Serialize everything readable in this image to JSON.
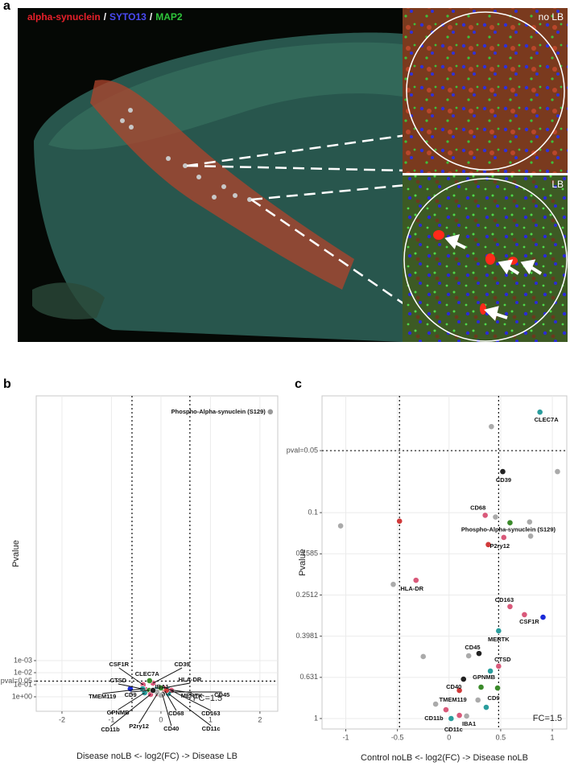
{
  "figure_a": {
    "panel_label": "a",
    "legend": [
      {
        "text": "alpha-synuclein",
        "color": "#e8202a"
      },
      {
        "text": "/",
        "color": "#ffffff"
      },
      {
        "text": "SYTO13",
        "color": "#4a4af5"
      },
      {
        "text": "/",
        "color": "#ffffff"
      },
      {
        "text": "MAP2",
        "color": "#2ec43a"
      }
    ],
    "insets": [
      "no LB",
      "LB"
    ]
  },
  "chart_data": [
    {
      "type": "scatter",
      "panel_label": "b",
      "x_label": "Disease noLB <- log2(FC) -> Disease LB",
      "y_label": "Pvalue",
      "annotation": "FC=1.5",
      "xlim": [
        -2.52,
        2.36
      ],
      "xticks": [
        -2,
        -1,
        0,
        1,
        2
      ],
      "ylim": [
        15.8,
        1.2e-25
      ],
      "log_y": true,
      "yticks": [
        {
          "value": 1,
          "label": "1e+00"
        },
        {
          "value": 0.1,
          "label": "1e-01"
        },
        {
          "value": 0.05,
          "label": "pval=0.05"
        },
        {
          "value": 0.01,
          "label": "1e-02"
        },
        {
          "value": 0.001,
          "label": "1e-03"
        }
      ],
      "vlines": [
        -0.585,
        0.585
      ],
      "hline": 0.05,
      "grid": true,
      "points": [
        {
          "label": "Phospho-Alpha-synuclein (S129)",
          "color": "#9a9a9a",
          "x": 2.21,
          "y": 2.5e-24
        },
        {
          "label": "CSF1R",
          "color": "#d9597a",
          "x": -0.36,
          "y": 0.1
        },
        {
          "label": "CD39",
          "color": "#d9597a",
          "x": -0.16,
          "y": 0.0736
        },
        {
          "label": "CLEC7A",
          "color": "#3a8a2a",
          "x": -0.23,
          "y": 0.0464
        },
        {
          "label": "CTSD",
          "color": "#d9597a",
          "x": -0.31,
          "y": 0.251
        },
        {
          "label": "HLA-DR",
          "color": "#d9597a",
          "x": 0.05,
          "y": 0.185
        },
        {
          "label": "IBA1",
          "color": "#2a9d9d",
          "x": -0.11,
          "y": 0.251
        },
        {
          "label": "MERTK",
          "color": "#2a9d9d",
          "x": 0.15,
          "y": 0.251
        },
        {
          "label": "CD45",
          "color": "#222222",
          "x": 0.16,
          "y": 0.398
        },
        {
          "label": "TMEM119",
          "color": "#2a9d9d",
          "x": -0.37,
          "y": 0.215
        },
        {
          "label": "CD9",
          "color": "#3a8a2a",
          "x": -0.24,
          "y": 0.293
        },
        {
          "label": "GPNMB",
          "color": "#2a9d9d",
          "x": -0.33,
          "y": 0.464
        },
        {
          "label": "CD68",
          "color": "#d03a3a",
          "x": 0.08,
          "y": 0.341
        },
        {
          "label": "CD163",
          "color": "#d9597a",
          "x": 0.21,
          "y": 0.293
        },
        {
          "label": "CD11b",
          "color": "#d9597a",
          "x": -0.21,
          "y": 0.631
        },
        {
          "label": "P2ry12",
          "color": "#d9597a",
          "x": -0.07,
          "y": 0.541
        },
        {
          "label": "CD40",
          "color": "#222222",
          "x": 0.03,
          "y": 0.631
        },
        {
          "label": "CD11c",
          "color": "#2a9d9d",
          "x": 0.15,
          "y": 0.541
        },
        {
          "color": "#1a2ad8",
          "x": -0.62,
          "y": 0.215
        },
        {
          "color": "#d03a3a",
          "x": 0.11,
          "y": 0.293
        },
        {
          "color": "#aaaaaa",
          "x": 0,
          "y": 0.736
        },
        {
          "color": "#aaaaaa",
          "x": -0.08,
          "y": 0.398
        },
        {
          "color": "#222222",
          "x": -0.16,
          "y": 0.293
        },
        {
          "color": "#3a8a2a",
          "x": 0,
          "y": 0.185
        }
      ]
    },
    {
      "type": "scatter",
      "panel_label": "c",
      "x_label": "Control noLB <- log2(FC) -> Disease noLB",
      "y_label": "Pvalue",
      "annotation": "FC=1.5",
      "xlim": [
        -1.23,
        1.14
      ],
      "xticks": [
        -1,
        -0.5,
        0,
        0.5,
        1
      ],
      "ylim": [
        1.124,
        0.0271
      ],
      "log_y": true,
      "yticks": [
        1,
        0.631,
        0.3981,
        0.2512,
        0.1585,
        0.1,
        {
          "value": 0.05,
          "label": "pval=0.05"
        }
      ],
      "vlines": [
        -0.48,
        0.48
      ],
      "hline": 0.05,
      "grid": true,
      "points": [
        {
          "label": "CLEC7A",
          "color": "#2a9d9d",
          "x": 0.88,
          "y": 0.0325
        },
        {
          "label": "CD39",
          "color": "#222222",
          "x": 0.52,
          "y": 0.0632
        },
        {
          "label": "CD68",
          "color": "#d9597a",
          "x": 0.35,
          "y": 0.103
        },
        {
          "label": "Phospho-Alpha-synuclein (S129)",
          "color": "#3a8a2a",
          "x": 0.59,
          "y": 0.112
        },
        {
          "label": "P2ry12",
          "color": "#d9597a",
          "x": 0.53,
          "y": 0.132
        },
        {
          "label": "CD163",
          "color": "#d9597a",
          "x": 0.59,
          "y": 0.286
        },
        {
          "label": "CSF1R",
          "color": "#d9597a",
          "x": 0.73,
          "y": 0.313
        },
        {
          "label": "HLA-DR",
          "color": "#d9597a",
          "x": -0.32,
          "y": 0.213
        },
        {
          "label": "MERTK",
          "color": "#2a9d9d",
          "x": 0.48,
          "y": 0.375
        },
        {
          "label": "CD45",
          "color": "#222222",
          "x": 0.29,
          "y": 0.483
        },
        {
          "label": "CTSD",
          "color": "#d9597a",
          "x": 0.48,
          "y": 0.557
        },
        {
          "label": "GPNMB",
          "color": "#2a9d9d",
          "x": 0.4,
          "y": 0.588
        },
        {
          "label": "CD40",
          "color": "#222222",
          "x": 0.14,
          "y": 0.644
        },
        {
          "label": "CD9",
          "color": "#3a8a2a",
          "x": 0.47,
          "y": 0.711
        },
        {
          "label": "TMEM119",
          "color": "#d03a3a",
          "x": 0.1,
          "y": 0.73
        },
        {
          "label": "CD11b",
          "color": "#d9597a",
          "x": -0.03,
          "y": 0.906
        },
        {
          "label": "IBA1",
          "color": "#d9597a",
          "x": 0.1,
          "y": 0.965
        },
        {
          "label": "CD11c",
          "color": "#2a9d9d",
          "x": 0.02,
          "y": 1
        },
        {
          "color": "#aaaaaa",
          "x": 0.41,
          "y": 0.0382
        },
        {
          "color": "#aaaaaa",
          "x": 1.05,
          "y": 0.0632
        },
        {
          "color": "#aaaaaa",
          "x": 0.45,
          "y": 0.105
        },
        {
          "color": "#aaaaaa",
          "x": 0.78,
          "y": 0.111
        },
        {
          "color": "#aaaaaa",
          "x": -1.05,
          "y": 0.116
        },
        {
          "color": "#d03a3a",
          "x": -0.48,
          "y": 0.11
        },
        {
          "color": "#d03a3a",
          "x": 0.38,
          "y": 0.143
        },
        {
          "color": "#aaaaaa",
          "x": 0.79,
          "y": 0.13
        },
        {
          "color": "#1a2ad8",
          "x": 0.91,
          "y": 0.322
        },
        {
          "color": "#aaaaaa",
          "x": -0.54,
          "y": 0.223
        },
        {
          "color": "#aaaaaa",
          "x": 0.19,
          "y": 0.496
        },
        {
          "color": "#aaaaaa",
          "x": -0.25,
          "y": 0.5
        },
        {
          "color": "#3a8a2a",
          "x": 0.31,
          "y": 0.704
        },
        {
          "color": "#aaaaaa",
          "x": 0.28,
          "y": 0.813
        },
        {
          "color": "#2a9d9d",
          "x": 0.36,
          "y": 0.882
        },
        {
          "color": "#aaaaaa",
          "x": -0.13,
          "y": 0.851
        },
        {
          "color": "#aaaaaa",
          "x": 0.17,
          "y": 0.973
        }
      ]
    }
  ]
}
